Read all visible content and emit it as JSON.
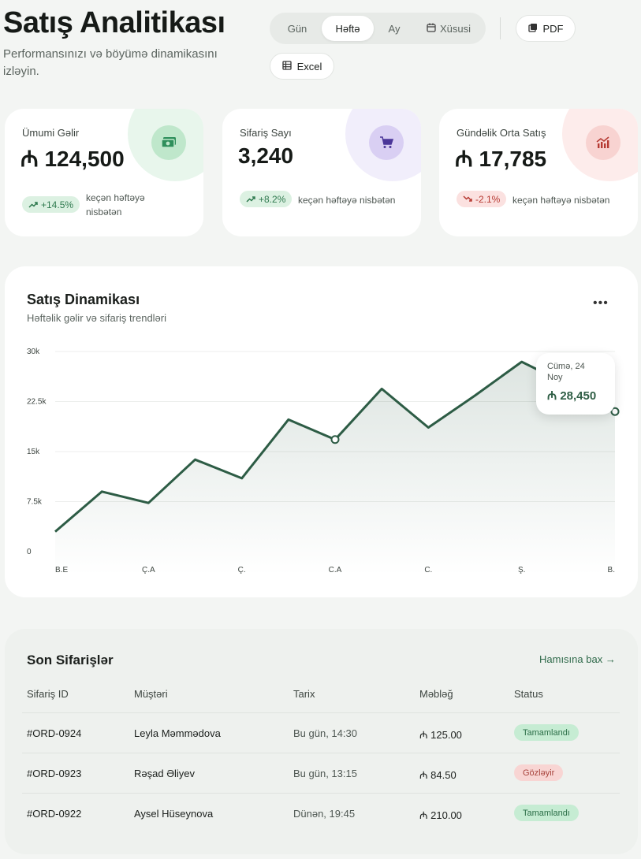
{
  "header": {
    "title": "Satış Analitikası",
    "subtitle": "Performansınızı və böyümə dinamikasını izləyin."
  },
  "period_tabs": [
    {
      "label": "Gün",
      "active": false
    },
    {
      "label": "Həftə",
      "active": true
    },
    {
      "label": "Ay",
      "active": false
    },
    {
      "label": "Xüsusi",
      "active": false,
      "icon": "calendar-icon"
    }
  ],
  "export": {
    "pdf_label": "PDF",
    "excel_label": "Excel"
  },
  "stats": [
    {
      "label": "Ümumi Gəlir",
      "value": "₼ 124,500",
      "change": "+14.5%",
      "trend": "up",
      "note": "keçən həftəyə nisbətən",
      "icon": "cash-icon",
      "accent": "#2f8f5b"
    },
    {
      "label": "Sifariş Sayı",
      "value": "3,240",
      "change": "+8.2%",
      "trend": "up",
      "note": "keçən həftəyə nisbətən",
      "icon": "cart-icon",
      "accent": "#7a5ac9"
    },
    {
      "label": "Gündəlik Orta Satış",
      "value": "₼ 17,785",
      "change": "-2.1%",
      "trend": "down",
      "note": "keçən həftəyə nisbətən",
      "icon": "chart-icon",
      "accent": "#d0524a"
    }
  ],
  "sales_chart": {
    "title": "Satış Dinamikası",
    "subtitle": "Həftəlik gəlir və sifariş trendləri",
    "more_label": "•••",
    "tooltip": {
      "date": "Cümə, 24 Noy",
      "value": "₼ 28,450"
    }
  },
  "chart_data": {
    "type": "area",
    "categories": [
      "B.E",
      "Ç.A",
      "Ç.",
      "C.A",
      "C.",
      "Ş.",
      "B."
    ],
    "x": [
      0,
      0.5,
      1,
      1.5,
      2,
      2.5,
      3,
      3.5,
      4,
      4.5,
      5,
      5.5,
      6
    ],
    "values": [
      3000,
      9000,
      7300,
      13800,
      11000,
      19800,
      16800,
      24400,
      18600,
      23400,
      28450,
      25000,
      21000
    ],
    "markers": [
      3,
      4.2,
      6
    ],
    "ylim": [
      0,
      30000
    ],
    "yticks": [
      "0",
      "7.5k",
      "15k",
      "22.5k",
      "30k"
    ],
    "ytick_values": [
      0,
      7500,
      15000,
      22500,
      30000
    ],
    "grid": true,
    "line_color": "#2d5c45"
  },
  "orders": {
    "title": "Son Sifarişlər",
    "view_all": "Hamısına bax →",
    "columns": [
      "Sifariş ID",
      "Müştəri",
      "Tarix",
      "Məbləğ",
      "Status"
    ],
    "rows": [
      {
        "id": "#ORD-0924",
        "customer": "Leyla Məmmədova",
        "date": "Bu gün, 14:30",
        "amount": "₼ 125.00",
        "status": "Tamamlandı",
        "status_type": "done"
      },
      {
        "id": "#ORD-0923",
        "customer": "Rəşad Əliyev",
        "date": "Bu gün, 13:15",
        "amount": "₼ 84.50",
        "status": "Gözləyir",
        "status_type": "pending"
      },
      {
        "id": "#ORD-0922",
        "customer": "Aysel Hüseynova",
        "date": "Dünən, 19:45",
        "amount": "₼ 210.00",
        "status": "Tamamlandı",
        "status_type": "done"
      }
    ]
  }
}
